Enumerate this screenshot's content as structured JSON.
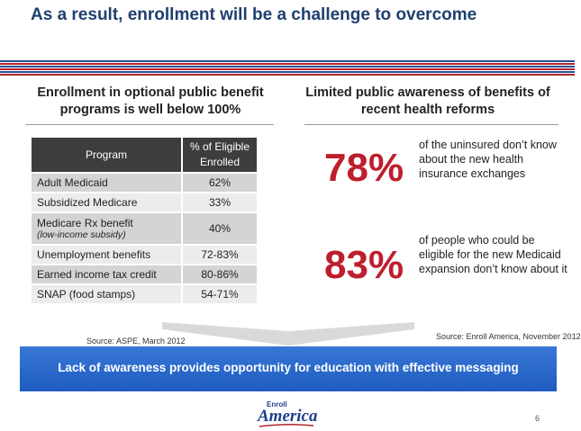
{
  "slide": {
    "title": "As a result, enrollment will be a challenge to overcome",
    "page_number": "6"
  },
  "left_column": {
    "heading": "Enrollment in optional public benefit programs is well below 100%",
    "table": {
      "headers": [
        "Program",
        "% of Eligible Enrolled"
      ],
      "rows": [
        {
          "program": "Adult Medicaid",
          "sub": "",
          "pct": "62%"
        },
        {
          "program": "Subsidized Medicare",
          "sub": "",
          "pct": "33%"
        },
        {
          "program": "Medicare Rx benefit",
          "sub": "(low-income subsidy)",
          "pct": "40%"
        },
        {
          "program": "Unemployment benefits",
          "sub": "",
          "pct": "72-83%"
        },
        {
          "program": "Earned income tax credit",
          "sub": "",
          "pct": "80-86%"
        },
        {
          "program": "SNAP (food stamps)",
          "sub": "",
          "pct": "54-71%"
        }
      ]
    },
    "source": "Source: ASPE, March 2012"
  },
  "right_column": {
    "heading": "Limited public awareness of benefits of recent health reforms",
    "stats": [
      {
        "value": "78%",
        "text": "of the uninsured don’t know about the new health insurance exchanges"
      },
      {
        "value": "83%",
        "text": "of people who could be eligible for the new Medicaid expansion don’t know about it"
      }
    ],
    "source": "Source: Enroll America, November 2012"
  },
  "banner": {
    "text": "Lack of awareness provides opportunity for education with effective messaging"
  },
  "logo": {
    "small_text": "Enroll",
    "big_text": "America"
  },
  "colors": {
    "title": "#1f3f6e",
    "stat_red": "#be1e2d",
    "banner_blue": "#2a68cc",
    "stripe_red": "#b3262e",
    "stripe_blue": "#2a4f93"
  }
}
